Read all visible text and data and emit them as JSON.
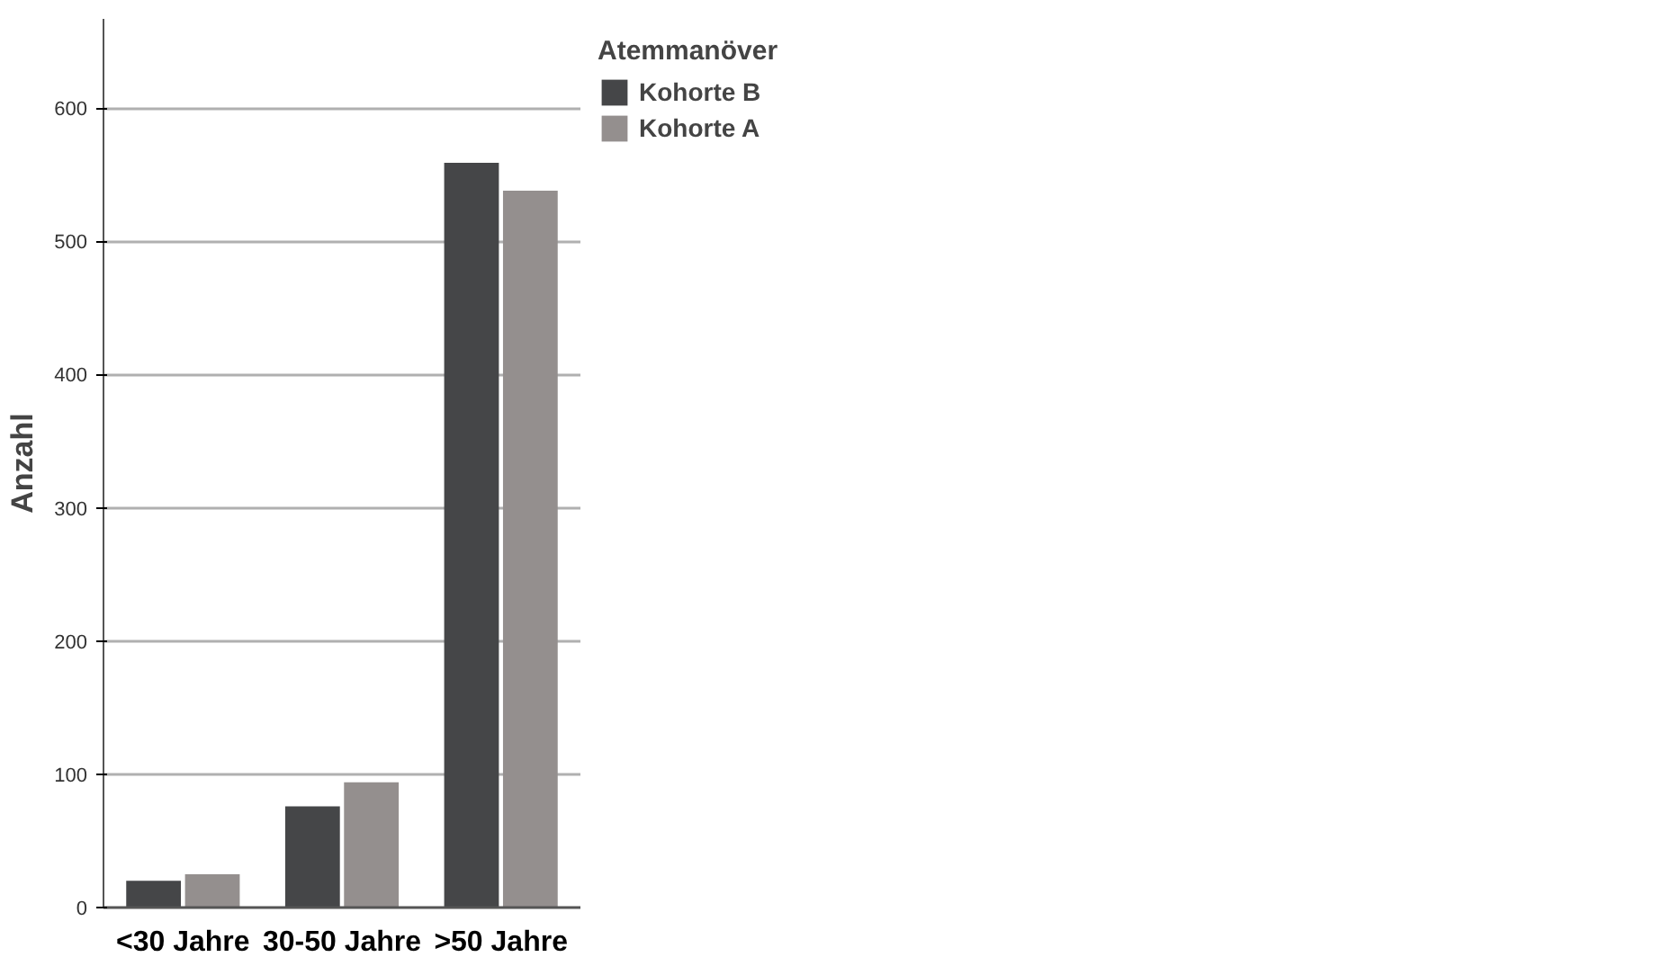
{
  "chart_data": {
    "type": "bar",
    "ylabel": "Anzahl",
    "legend_title": "Atemmanöver",
    "categories": [
      "<30 Jahre",
      "30-50 Jahre",
      ">50 Jahre"
    ],
    "series": [
      {
        "name": "Kohorte B",
        "color": "#454648",
        "values": [
          20,
          76,
          559
        ]
      },
      {
        "name": "Kohorte A",
        "color": "#948f8e",
        "values": [
          25,
          94,
          538
        ]
      }
    ],
    "ylim": [
      0,
      667
    ],
    "yticks": [
      0,
      100,
      200,
      300,
      400,
      500,
      600
    ],
    "grid": "y",
    "legend": "top right"
  }
}
